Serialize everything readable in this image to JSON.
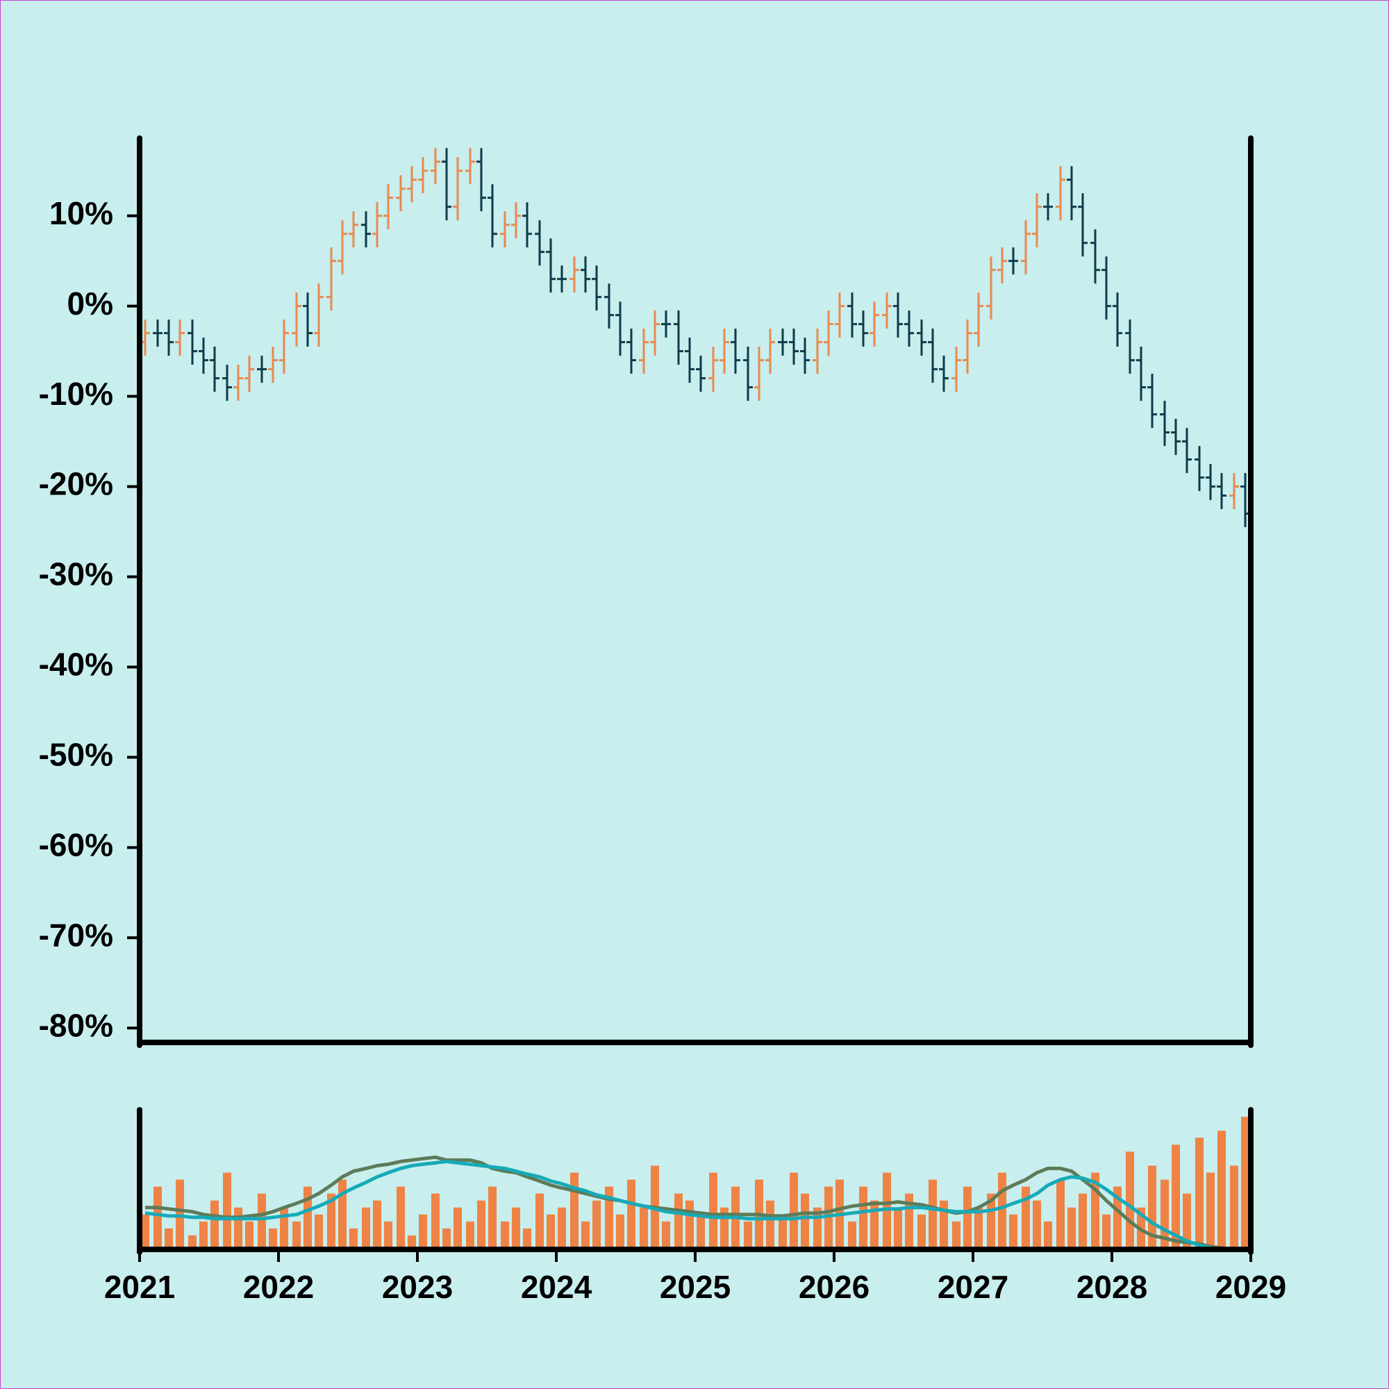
{
  "chart_data": [
    {
      "type": "ohlc",
      "x": [
        2021.04,
        2021.13,
        2021.21,
        2021.29,
        2021.38,
        2021.46,
        2021.54,
        2021.63,
        2021.71,
        2021.79,
        2021.88,
        2021.96,
        2022.04,
        2022.13,
        2022.21,
        2022.29,
        2022.38,
        2022.46,
        2022.54,
        2022.63,
        2022.71,
        2022.79,
        2022.88,
        2022.96,
        2023.04,
        2023.13,
        2023.21,
        2023.29,
        2023.38,
        2023.46,
        2023.54,
        2023.63,
        2023.71,
        2023.79,
        2023.88,
        2023.96,
        2024.04,
        2024.13,
        2024.21,
        2024.29,
        2024.38,
        2024.46,
        2024.54,
        2024.63,
        2024.71,
        2024.79,
        2024.88,
        2024.96,
        2025.04,
        2025.13,
        2025.21,
        2025.29,
        2025.38,
        2025.46,
        2025.54,
        2025.63,
        2025.71,
        2025.79,
        2025.88,
        2025.96,
        2026.04,
        2026.13,
        2026.21,
        2026.29,
        2026.38,
        2026.46,
        2026.54,
        2026.63,
        2026.71,
        2026.79,
        2026.88,
        2026.96,
        2027.04,
        2027.13,
        2027.21,
        2027.29,
        2027.38,
        2027.46,
        2027.54,
        2027.63,
        2027.71,
        2027.79,
        2027.88,
        2027.96,
        2028.04,
        2028.13,
        2028.21,
        2028.29,
        2028.38,
        2028.46,
        2028.54,
        2028.63,
        2028.71,
        2028.79,
        2028.88,
        2028.96
      ],
      "open": [
        -4,
        -3,
        -3,
        -4,
        -3,
        -5,
        -6,
        -8,
        -9,
        -8,
        -7,
        -7,
        -6,
        -3,
        0,
        -3,
        1,
        5,
        8,
        9,
        8,
        10,
        12,
        13,
        14,
        15,
        16,
        11,
        15,
        16,
        12,
        8,
        9,
        10,
        8,
        6,
        3,
        3,
        4,
        3,
        1,
        -1,
        -4,
        -6,
        -4,
        -2,
        -2,
        -5,
        -7,
        -8,
        -6,
        -4,
        -6,
        -9,
        -6,
        -4,
        -4,
        -5,
        -6,
        -4,
        -2,
        0,
        -2,
        -3,
        -1,
        0,
        -2,
        -3,
        -4,
        -7,
        -8,
        -6,
        -3,
        0,
        4,
        5,
        5,
        8,
        11,
        11,
        14,
        11,
        7,
        4,
        0,
        -3,
        -6,
        -9,
        -12,
        -14,
        -15,
        -17,
        -19,
        -20,
        -21,
        -20
      ],
      "high": [
        -1.5,
        -1.5,
        -1.5,
        -1.5,
        -1.5,
        -3.5,
        -4.5,
        -6.5,
        -6.5,
        -5.5,
        -5.5,
        -4.5,
        -1.5,
        1.5,
        1.5,
        2.5,
        6.5,
        9.5,
        10.5,
        10.5,
        11.5,
        13.5,
        14.5,
        15.5,
        16.5,
        17.5,
        17.5,
        16.5,
        17.5,
        17.5,
        13.5,
        10.5,
        11.5,
        11.5,
        9.5,
        7.5,
        4.5,
        5.5,
        5.5,
        4.5,
        2.5,
        0.5,
        -2.5,
        -2.5,
        -0.5,
        -0.5,
        -0.5,
        -3.5,
        -5.5,
        -4.5,
        -2.5,
        -2.5,
        -4.5,
        -4.5,
        -2.5,
        -2.5,
        -2.5,
        -3.5,
        -2.5,
        -0.5,
        1.5,
        1.5,
        -0.5,
        0.5,
        1.5,
        1.5,
        -0.5,
        -1.5,
        -2.5,
        -5.5,
        -4.5,
        -1.5,
        1.5,
        5.5,
        6.5,
        6.5,
        9.5,
        12.5,
        12.5,
        15.5,
        15.5,
        12.5,
        8.5,
        5.5,
        1.5,
        -1.5,
        -4.5,
        -7.5,
        -10.5,
        -12.5,
        -13.5,
        -15.5,
        -17.5,
        -18.5,
        -18.5,
        -18.5
      ],
      "low": [
        -5.5,
        -4.5,
        -5.5,
        -5.5,
        -6.5,
        -7.5,
        -9.5,
        -10.5,
        -10.5,
        -9.5,
        -8.5,
        -8.5,
        -7.5,
        -4.5,
        -4.5,
        -4.5,
        -0.5,
        3.5,
        6.5,
        6.5,
        6.5,
        8.5,
        10.5,
        11.5,
        12.5,
        13.5,
        9.5,
        9.5,
        13.5,
        10.5,
        6.5,
        6.5,
        7.5,
        6.5,
        4.5,
        1.5,
        1.5,
        1.5,
        1.5,
        -0.5,
        -2.5,
        -5.5,
        -7.5,
        -7.5,
        -5.5,
        -3.5,
        -6.5,
        -8.5,
        -9.5,
        -9.5,
        -7.5,
        -7.5,
        -10.5,
        -10.5,
        -7.5,
        -5.5,
        -6.5,
        -7.5,
        -7.5,
        -5.5,
        -3.5,
        -3.5,
        -4.5,
        -4.5,
        -2.5,
        -3.5,
        -4.5,
        -5.5,
        -8.5,
        -9.5,
        -9.5,
        -7.5,
        -4.5,
        -1.5,
        2.5,
        3.5,
        3.5,
        6.5,
        9.5,
        9.5,
        9.5,
        5.5,
        2.5,
        -1.5,
        -4.5,
        -7.5,
        -10.5,
        -13.5,
        -15.5,
        -16.5,
        -18.5,
        -20.5,
        -21.5,
        -22.5,
        -22.5,
        -24.5
      ],
      "close": [
        -3,
        -3,
        -4,
        -3,
        -5,
        -6,
        -8,
        -9,
        -8,
        -7,
        -7,
        -6,
        -3,
        0,
        -3,
        1,
        5,
        8,
        9,
        8,
        10,
        12,
        13,
        14,
        15,
        16,
        11,
        15,
        16,
        12,
        8,
        9,
        10,
        8,
        6,
        3,
        3,
        4,
        3,
        1,
        -1,
        -4,
        -6,
        -4,
        -2,
        -2,
        -5,
        -7,
        -8,
        -6,
        -4,
        -6,
        -9,
        -6,
        -4,
        -4,
        -5,
        -6,
        -4,
        -2,
        0,
        -2,
        -3,
        -1,
        0,
        -2,
        -3,
        -4,
        -7,
        -8,
        -6,
        -3,
        0,
        4,
        5,
        5,
        8,
        11,
        11,
        14,
        11,
        7,
        4,
        0,
        -3,
        -6,
        -9,
        -12,
        -14,
        -15,
        -17,
        -19,
        -20,
        -21,
        -20,
        -23
      ],
      "up_color": "#e8894f",
      "down_color": "#0d3b4a",
      "xlim": [
        2021,
        2029
      ],
      "ylim": [
        -81.6,
        18.6
      ],
      "yticks": [
        {
          "value": 10,
          "label": "10%"
        },
        {
          "value": 0,
          "label": "0%"
        },
        {
          "value": -10,
          "label": "-10%"
        },
        {
          "value": -20,
          "label": "-20%"
        },
        {
          "value": -30,
          "label": "-30%"
        },
        {
          "value": -40,
          "label": "-40%"
        },
        {
          "value": -50,
          "label": "-50%"
        },
        {
          "value": -60,
          "label": "-60%"
        },
        {
          "value": -70,
          "label": "-70%"
        },
        {
          "value": -80,
          "label": "-80%"
        }
      ],
      "grid": false
    },
    {
      "type": "volume",
      "x": [
        2021.04,
        2021.13,
        2021.21,
        2021.29,
        2021.38,
        2021.46,
        2021.54,
        2021.63,
        2021.71,
        2021.79,
        2021.88,
        2021.96,
        2022.04,
        2022.13,
        2022.21,
        2022.29,
        2022.38,
        2022.46,
        2022.54,
        2022.63,
        2022.71,
        2022.79,
        2022.88,
        2022.96,
        2023.04,
        2023.13,
        2023.21,
        2023.29,
        2023.38,
        2023.46,
        2023.54,
        2023.63,
        2023.71,
        2023.79,
        2023.88,
        2023.96,
        2024.04,
        2024.13,
        2024.21,
        2024.29,
        2024.38,
        2024.46,
        2024.54,
        2024.63,
        2024.71,
        2024.79,
        2024.88,
        2024.96,
        2025.04,
        2025.13,
        2025.21,
        2025.29,
        2025.38,
        2025.46,
        2025.54,
        2025.63,
        2025.71,
        2025.79,
        2025.88,
        2025.96,
        2026.04,
        2026.13,
        2026.21,
        2026.29,
        2026.38,
        2026.46,
        2026.54,
        2026.63,
        2026.71,
        2026.79,
        2026.88,
        2026.96,
        2027.04,
        2027.13,
        2027.21,
        2027.29,
        2027.38,
        2027.46,
        2027.54,
        2027.63,
        2027.71,
        2027.79,
        2027.88,
        2027.96,
        2028.04,
        2028.13,
        2028.21,
        2028.29,
        2028.38,
        2028.46,
        2028.54,
        2028.63,
        2028.71,
        2028.79,
        2028.88,
        2028.96
      ],
      "values": [
        25,
        45,
        15,
        50,
        10,
        20,
        35,
        55,
        30,
        20,
        40,
        15,
        30,
        20,
        45,
        25,
        40,
        50,
        15,
        30,
        35,
        20,
        45,
        10,
        25,
        40,
        15,
        30,
        20,
        35,
        45,
        20,
        30,
        15,
        40,
        25,
        30,
        55,
        20,
        35,
        45,
        25,
        50,
        30,
        60,
        20,
        40,
        35,
        25,
        55,
        30,
        45,
        20,
        50,
        35,
        25,
        55,
        40,
        30,
        45,
        50,
        20,
        45,
        35,
        55,
        30,
        40,
        25,
        50,
        35,
        20,
        45,
        30,
        40,
        55,
        25,
        45,
        35,
        20,
        50,
        30,
        40,
        55,
        25,
        45,
        70,
        30,
        60,
        50,
        75,
        40,
        80,
        55,
        85,
        60,
        95
      ],
      "color": "#ef8345",
      "lines": [
        {
          "color": "#5e7b58",
          "values": [
            30,
            30,
            29,
            28,
            27,
            25,
            24,
            23,
            23,
            24,
            25,
            27,
            30,
            33,
            36,
            40,
            46,
            52,
            56,
            58,
            60,
            61,
            63,
            64,
            65,
            66,
            64,
            64,
            64,
            62,
            58,
            56,
            55,
            52,
            49,
            46,
            44,
            42,
            40,
            38,
            36,
            35,
            33,
            31,
            30,
            29,
            28,
            27,
            26,
            25,
            25,
            25,
            25,
            25,
            24,
            24,
            25,
            26,
            26,
            27,
            29,
            31,
            32,
            33,
            33,
            34,
            33,
            32,
            30,
            28,
            26,
            27,
            30,
            35,
            42,
            46,
            50,
            55,
            58,
            58,
            56,
            50,
            43,
            35,
            28,
            20,
            14,
            10,
            8,
            6,
            5,
            4,
            2,
            1,
            0,
            0
          ]
        },
        {
          "color": "#16aab8",
          "values": [
            26,
            25,
            24,
            24,
            23,
            23,
            22,
            22,
            22,
            22,
            22,
            23,
            24,
            25,
            28,
            31,
            35,
            40,
            44,
            48,
            52,
            55,
            58,
            60,
            61,
            62,
            63,
            62,
            61,
            60,
            59,
            58,
            56,
            54,
            52,
            49,
            47,
            44,
            42,
            39,
            37,
            35,
            33,
            31,
            29,
            27,
            26,
            25,
            24,
            23,
            23,
            23,
            22,
            22,
            22,
            22,
            22,
            23,
            23,
            24,
            25,
            26,
            27,
            28,
            29,
            29,
            30,
            30,
            29,
            28,
            27,
            27,
            27,
            28,
            30,
            33,
            36,
            40,
            46,
            50,
            52,
            51,
            48,
            43,
            37,
            31,
            25,
            19,
            14,
            10,
            6,
            3,
            1,
            0,
            0,
            0
          ]
        }
      ],
      "xlim": [
        2021,
        2029
      ],
      "ylim": [
        0,
        100
      ],
      "xticks": [
        2021,
        2022,
        2023,
        2024,
        2025,
        2026,
        2027,
        2028,
        2029
      ]
    }
  ]
}
